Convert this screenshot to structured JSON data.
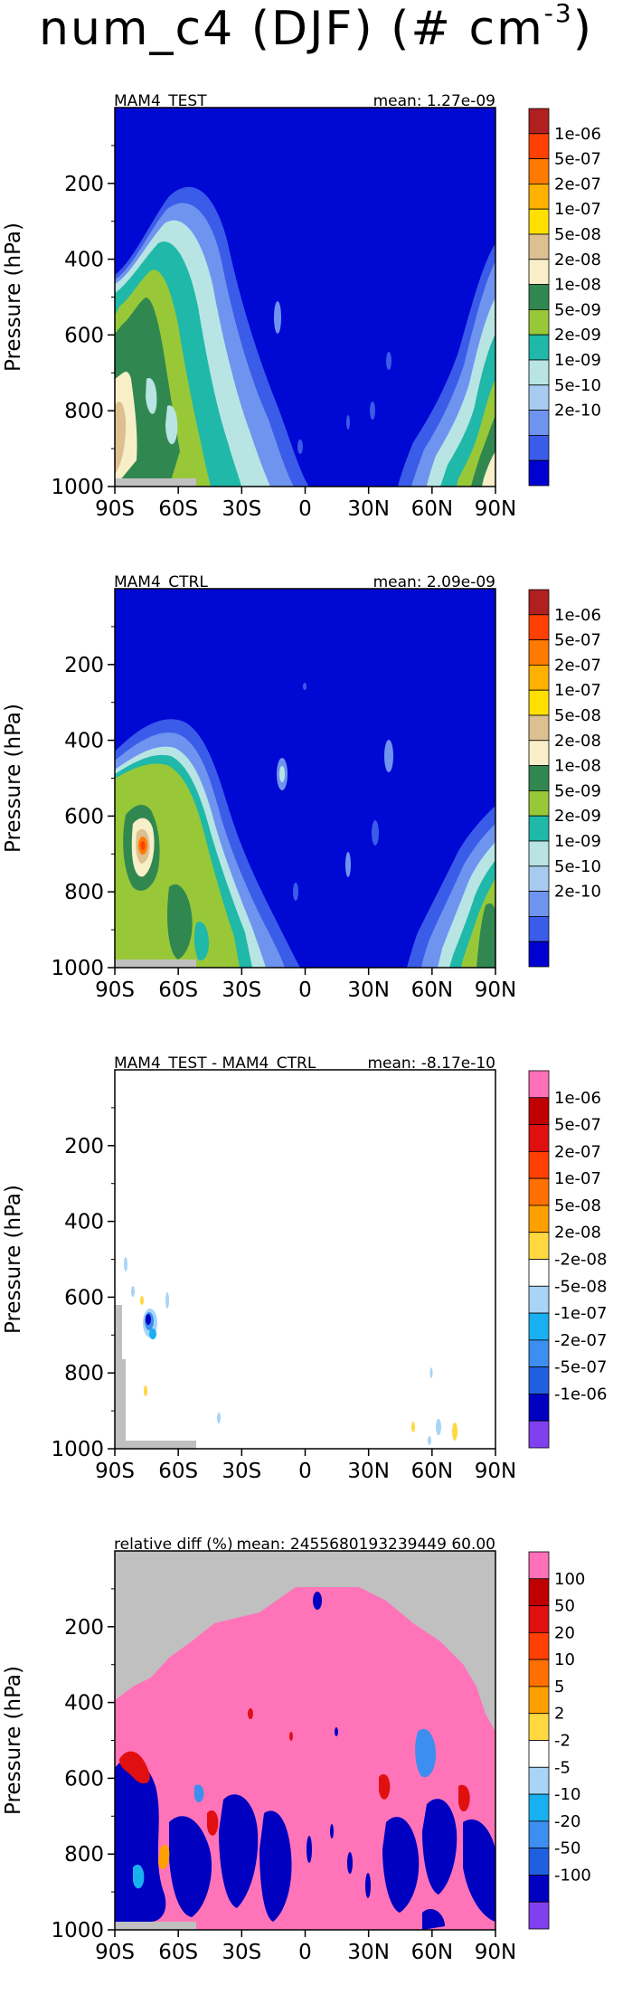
{
  "title": {
    "main": "num_c4 (DJF) (# cm",
    "exp": "-3",
    "close": ")"
  },
  "colors": {
    "abs": [
      "#0000d0",
      "#3a5ce8",
      "#6f94f0",
      "#a8cbf0",
      "#b8e4e4",
      "#20b8a8",
      "#98c838",
      "#308850",
      "#f8eec8",
      "#dcc090",
      "#ffe000",
      "#ffb000",
      "#ff7a00",
      "#ff4000",
      "#b02020"
    ],
    "diff": [
      "#8040f0",
      "#0000c0",
      "#2060e0",
      "#3c8ef0",
      "#18b0f0",
      "#a8d4f8",
      "#ffffff",
      "#ffd840",
      "#ffa000",
      "#ff7000",
      "#ff4000",
      "#e01010",
      "#c00000",
      "#ff70b8"
    ],
    "missing": "#c0c0c0",
    "background_blue": "#0008d4",
    "background_pink": "#ff74b8"
  },
  "chart_data": [
    {
      "type": "heatmap",
      "title_left": "MAM4_TEST",
      "title_right": "mean: 1.27e-09",
      "ylabel": "Pressure (hPa)",
      "x_ticks": [
        "90S",
        "60S",
        "30S",
        "0",
        "30N",
        "60N",
        "90N"
      ],
      "y_ticks": [
        "200",
        "400",
        "600",
        "800",
        "1000"
      ],
      "ylim": [
        1000,
        0
      ],
      "xlim": [
        -90,
        90
      ],
      "colorbar_labels": [
        "1e-06",
        "5e-07",
        "2e-07",
        "1e-07",
        "5e-08",
        "2e-08",
        "1e-08",
        "5e-09",
        "2e-09",
        "1e-09",
        "5e-10",
        "2e-10"
      ]
    },
    {
      "type": "heatmap",
      "title_left": "MAM4_CTRL",
      "title_right": "mean: 2.09e-09",
      "ylabel": "Pressure (hPa)",
      "x_ticks": [
        "90S",
        "60S",
        "30S",
        "0",
        "30N",
        "60N",
        "90N"
      ],
      "y_ticks": [
        "200",
        "400",
        "600",
        "800",
        "1000"
      ],
      "ylim": [
        1000,
        0
      ],
      "xlim": [
        -90,
        90
      ],
      "colorbar_labels": [
        "1e-06",
        "5e-07",
        "2e-07",
        "1e-07",
        "5e-08",
        "2e-08",
        "1e-08",
        "5e-09",
        "2e-09",
        "1e-09",
        "5e-10",
        "2e-10"
      ]
    },
    {
      "type": "heatmap",
      "title_left": "MAM4_TEST - MAM4_CTRL",
      "title_right": "mean: -8.17e-10",
      "ylabel": "Pressure (hPa)",
      "x_ticks": [
        "90S",
        "60S",
        "30S",
        "0",
        "30N",
        "60N",
        "90N"
      ],
      "y_ticks": [
        "200",
        "400",
        "600",
        "800",
        "1000"
      ],
      "ylim": [
        1000,
        0
      ],
      "xlim": [
        -90,
        90
      ],
      "colorbar_labels": [
        "1e-06",
        "5e-07",
        "2e-07",
        "1e-07",
        "5e-08",
        "2e-08",
        "-2e-08",
        "-5e-08",
        "-1e-07",
        "-2e-07",
        "-5e-07",
        "-1e-06"
      ]
    },
    {
      "type": "heatmap",
      "title_left": "relative diff (%)",
      "title_right": "mean: 2455680193239449 60.00",
      "ylabel": "Pressure (hPa)",
      "x_ticks": [
        "90S",
        "60S",
        "30S",
        "0",
        "30N",
        "60N",
        "90N"
      ],
      "y_ticks": [
        "200",
        "400",
        "600",
        "800",
        "1000"
      ],
      "ylim": [
        1000,
        0
      ],
      "xlim": [
        -90,
        90
      ],
      "colorbar_labels": [
        "100",
        "50",
        "20",
        "10",
        "5",
        "2",
        "-2",
        "-5",
        "-10",
        "-20",
        "-50",
        "-100"
      ]
    }
  ]
}
